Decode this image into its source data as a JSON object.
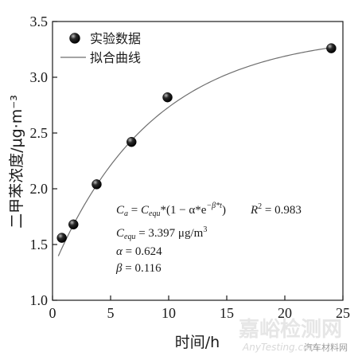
{
  "chart_data": {
    "type": "scatter",
    "xlabel": "时间/h",
    "ylabel": "二甲苯浓度/μg·m⁻³",
    "xlim": [
      0,
      25
    ],
    "ylim": [
      1.0,
      3.5
    ],
    "xticks": [
      "0",
      "5",
      "10",
      "15",
      "20",
      "25"
    ],
    "yticks": [
      "1.0",
      "1.5",
      "2.0",
      "2.5",
      "3.0",
      "3.5"
    ],
    "grid": false,
    "legend_position": "top-left",
    "series": [
      {
        "name": "实验数据",
        "kind": "scatter",
        "x": [
          0.8,
          1.8,
          3.8,
          6.8,
          9.9,
          24.0
        ],
        "y": [
          1.56,
          1.68,
          2.04,
          2.42,
          2.82,
          3.26
        ]
      },
      {
        "name": "拟合曲线",
        "kind": "line",
        "model": {
          "c_equ": 3.397,
          "alpha": 0.624,
          "beta": 0.116
        }
      }
    ],
    "annotations": {
      "equation_lhs": "C",
      "equation_lhs_sub": "a",
      "equation_rhs_c": "C",
      "equation_rhs_sub": "equ",
      "equation_mid": "*(1 − α*e",
      "equation_exp": "−β*t",
      "equation_end": ")",
      "r2_label": "R",
      "r2_sup": "2",
      "r2_value": " = 0.983",
      "cequ_c": "C",
      "cequ_sub": "equ",
      "cequ_value": " = 3.397 μg/m",
      "cequ_unit_sup": "3",
      "alpha_sym": "α",
      "alpha_value": " = 0.624",
      "beta_sym": "β",
      "beta_value": " = 0.116"
    }
  },
  "watermark": {
    "cn": "嘉峪检测网",
    "en": "AnyTesting.com",
    "badge": "汽车材料网"
  }
}
